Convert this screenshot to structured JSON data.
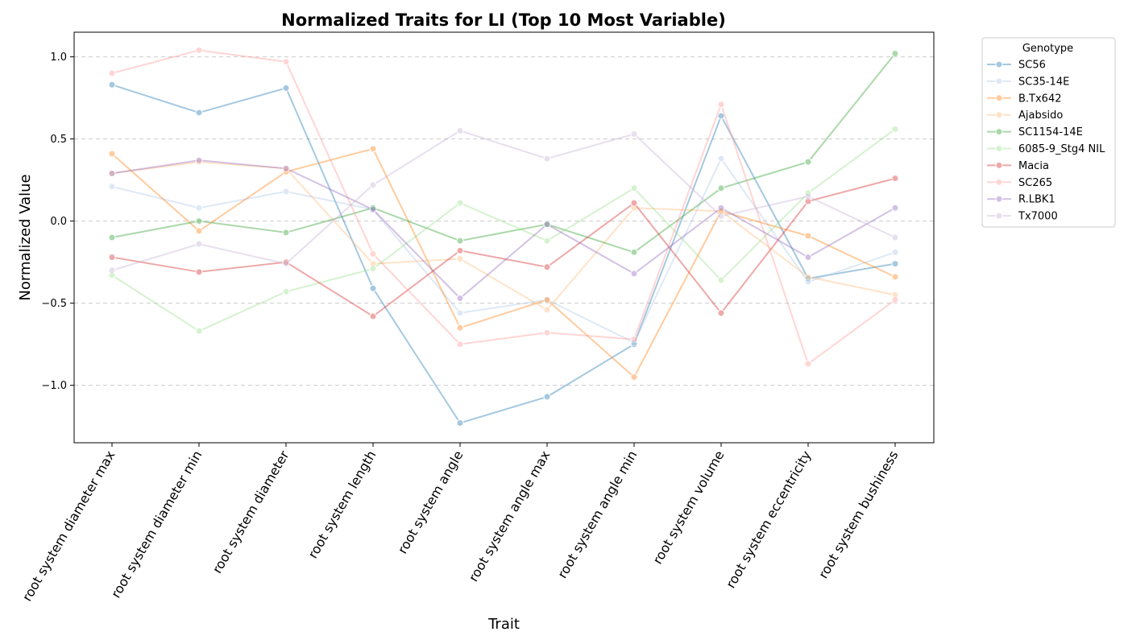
{
  "chart_data": {
    "type": "line",
    "title": "Normalized Traits for LI (Top 10 Most Variable)",
    "xlabel": "Trait",
    "ylabel": "Normalized Value",
    "ylim": [
      -1.35,
      1.15
    ],
    "yticks": [
      -1.0,
      -0.5,
      0.0,
      0.5,
      1.0
    ],
    "ytick_labels": [
      "−1.0",
      "−0.5",
      "0.0",
      "0.5",
      "1.0"
    ],
    "grid": "y-dashed",
    "legend": {
      "title": "Genotype",
      "placement": "outside-top-right"
    },
    "categories": [
      "root system diameter max",
      "root system diameter min",
      "root system diameter",
      "root system length",
      "root system angle",
      "root system angle max",
      "root system angle min",
      "root system volume",
      "root system eccentricity",
      "root system bushiness"
    ],
    "series": [
      {
        "name": "SC56",
        "color": "#1f77b4",
        "values": [
          0.83,
          0.66,
          0.81,
          -0.41,
          -1.23,
          -1.07,
          -0.75,
          0.64,
          -0.35,
          -0.26
        ]
      },
      {
        "name": "SC35-14E",
        "color": "#aec7e8",
        "values": [
          0.21,
          0.08,
          0.18,
          0.07,
          -0.56,
          -0.48,
          -0.74,
          0.38,
          -0.37,
          -0.19
        ]
      },
      {
        "name": "B.Tx642",
        "color": "#ff7f0e",
        "values": [
          0.41,
          -0.06,
          0.3,
          0.44,
          -0.65,
          -0.48,
          -0.95,
          0.06,
          -0.09,
          -0.34
        ]
      },
      {
        "name": "Ajabsido",
        "color": "#ffbb78",
        "values": [
          0.29,
          0.36,
          0.32,
          -0.26,
          -0.23,
          -0.54,
          0.08,
          0.06,
          -0.34,
          -0.45
        ]
      },
      {
        "name": "SC1154-14E",
        "color": "#2ca02c",
        "values": [
          -0.1,
          0.0,
          -0.07,
          0.08,
          -0.12,
          -0.02,
          -0.19,
          0.2,
          0.36,
          1.02
        ]
      },
      {
        "name": "6085-9_Stg4 NIL",
        "color": "#98df8a",
        "values": [
          -0.33,
          -0.67,
          -0.43,
          -0.29,
          0.11,
          -0.12,
          0.2,
          -0.36,
          0.17,
          0.56
        ]
      },
      {
        "name": "Macia",
        "color": "#d62728",
        "values": [
          -0.22,
          -0.31,
          -0.25,
          -0.58,
          -0.18,
          -0.28,
          0.11,
          -0.56,
          0.12,
          0.26
        ]
      },
      {
        "name": "SC265",
        "color": "#ff9896",
        "values": [
          0.9,
          1.04,
          0.97,
          -0.2,
          -0.75,
          -0.68,
          -0.72,
          0.71,
          -0.87,
          -0.48
        ]
      },
      {
        "name": "R.LBK1",
        "color": "#9467bd",
        "values": [
          0.29,
          0.37,
          0.32,
          0.07,
          -0.47,
          -0.02,
          -0.32,
          0.08,
          -0.22,
          0.08
        ]
      },
      {
        "name": "Tx7000",
        "color": "#c5b0d5",
        "values": [
          -0.3,
          -0.14,
          -0.26,
          0.22,
          0.55,
          0.38,
          0.53,
          0.03,
          0.15,
          -0.1
        ]
      }
    ]
  }
}
